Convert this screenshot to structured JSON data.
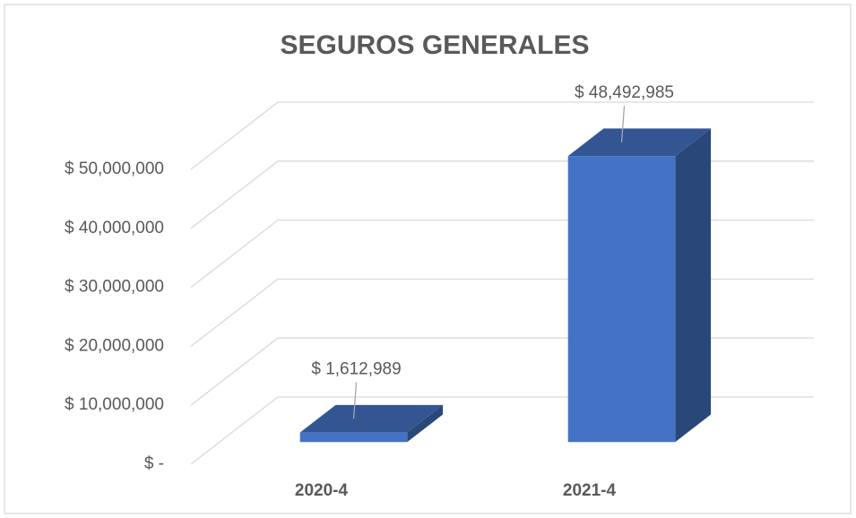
{
  "chart_data": {
    "type": "bar3d",
    "title": "SEGUROS GENERALES",
    "categories": [
      "2020-4",
      "2021-4"
    ],
    "values": [
      1612989,
      48492985
    ],
    "value_labels": [
      "$ 1,612,989",
      "$ 48,492,985"
    ],
    "color": "#4472c4",
    "ylim": [
      0,
      50000000
    ],
    "yticks": [
      {
        "value": 0,
        "label": "$ -"
      },
      {
        "value": 10000000,
        "label": "$ 10,000,000"
      },
      {
        "value": 20000000,
        "label": "$ 20,000,000"
      },
      {
        "value": 30000000,
        "label": "$ 30,000,000"
      },
      {
        "value": 40000000,
        "label": "$ 40,000,000"
      },
      {
        "value": 50000000,
        "label": "$ 50,000,000"
      }
    ],
    "grid": true
  }
}
